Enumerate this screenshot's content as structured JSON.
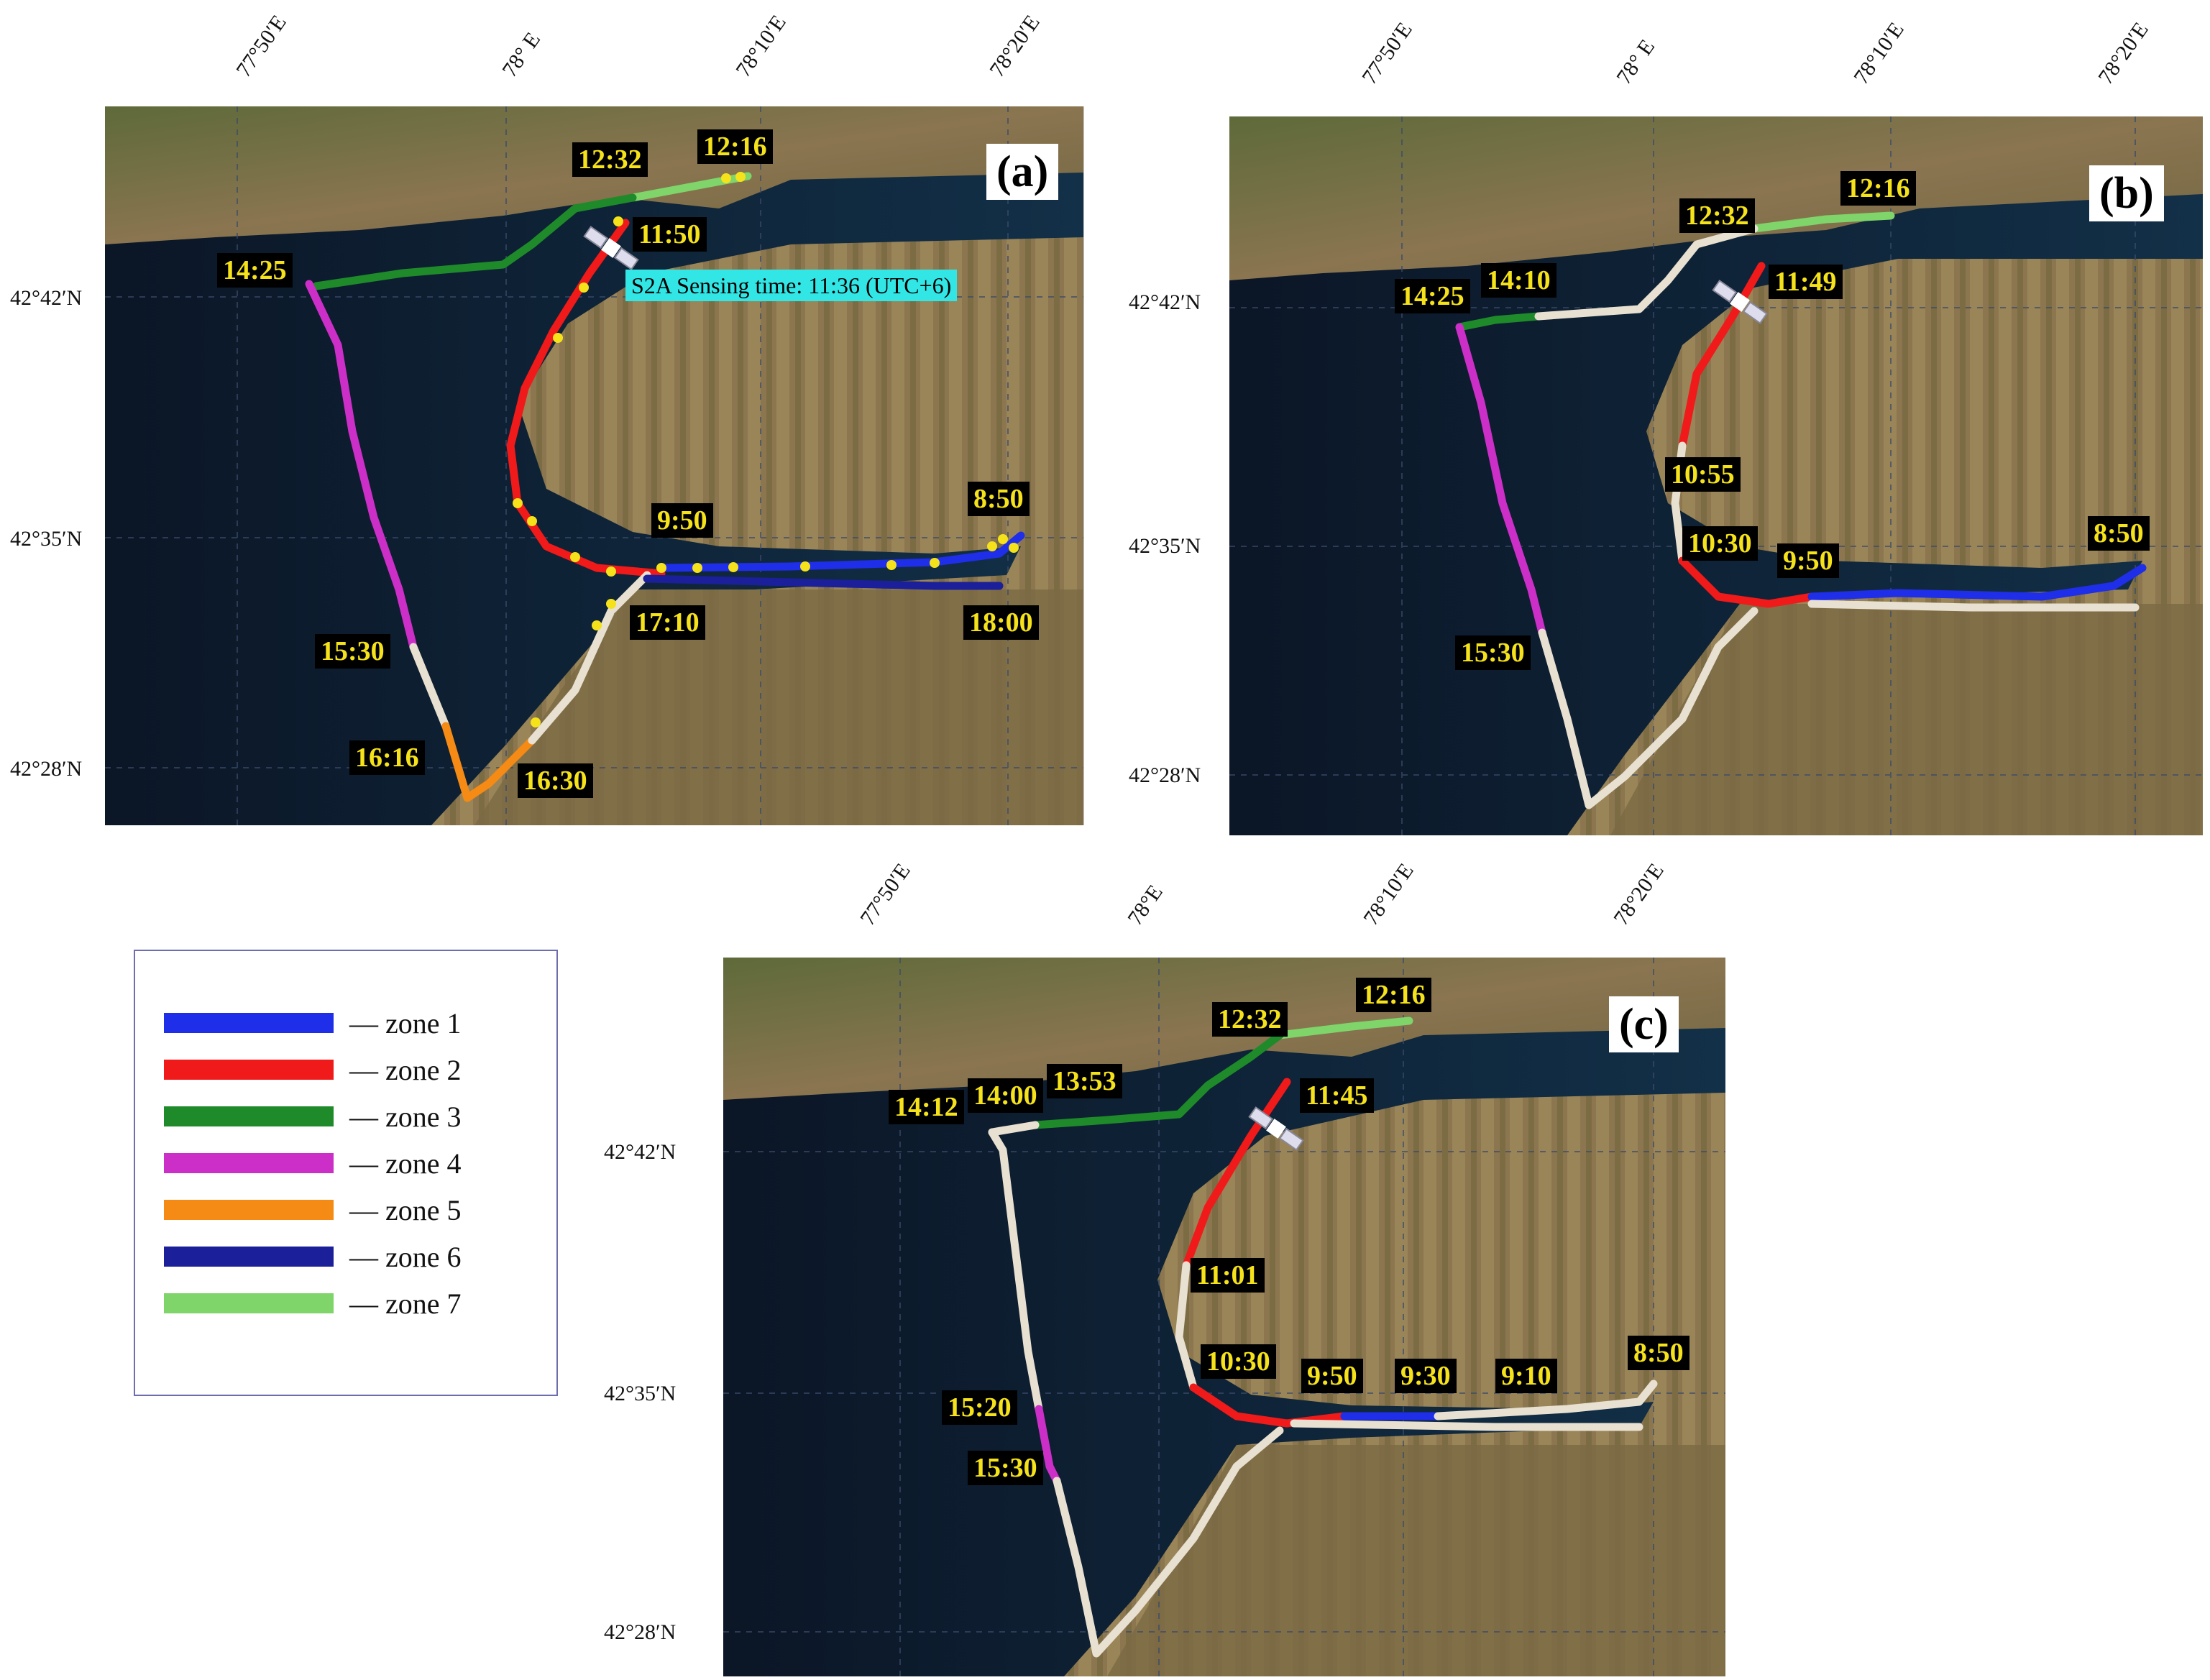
{
  "colors": {
    "zone1": "#1f2ee8",
    "zone2": "#f01a1a",
    "zone3": "#1e8a2a",
    "zone4": "#cc2fc8",
    "zone5": "#f58a14",
    "zone6": "#1b1f9a",
    "zone7": "#7fd46a",
    "unzoned": "#e8e0d0",
    "water": "#0e1b2c",
    "land": "#7a6a44",
    "sample_point": "#f5e21a"
  },
  "panels": {
    "a": {
      "letter": "(a)",
      "lon_labels": [
        "77°50′E",
        "78° E",
        "78°10′E",
        "78°20′E"
      ],
      "lat_labels": [
        "42°42′N",
        "42°35′N",
        "42°28′N"
      ],
      "sensing_label": "S2A Sensing time: 11:36 (UTC+6)",
      "times": [
        "12:32",
        "12:16",
        "11:50",
        "14:25",
        "9:50",
        "8:50",
        "17:10",
        "18:00",
        "15:30",
        "16:16",
        "16:30"
      ]
    },
    "b": {
      "letter": "(b)",
      "lon_labels": [
        "77°50′E",
        "78° E",
        "78°10′E",
        "78°20′E"
      ],
      "lat_labels": [
        "42°42′N",
        "42°35′N",
        "42°28′N"
      ],
      "times": [
        "12:16",
        "12:32",
        "14:10",
        "14:25",
        "11:49",
        "10:55",
        "10:30",
        "9:50",
        "8:50",
        "15:30"
      ]
    },
    "c": {
      "letter": "(c)",
      "lon_labels": [
        "77°50′E",
        "78°E",
        "78°10′E",
        "78°20′E"
      ],
      "lat_labels": [
        "42°42′N",
        "42°35′N",
        "42°28′N"
      ],
      "times": [
        "12:16",
        "12:32",
        "14:12",
        "14:00",
        "13:53",
        "11:45",
        "11:01",
        "10:30",
        "9:50",
        "9:30",
        "9:10",
        "8:50",
        "15:20",
        "15:30"
      ]
    }
  },
  "legend": {
    "items": [
      {
        "label": "— zone 1",
        "color_key": "zone1"
      },
      {
        "label": "— zone 2",
        "color_key": "zone2"
      },
      {
        "label": "— zone 3",
        "color_key": "zone3"
      },
      {
        "label": "— zone 4",
        "color_key": "zone4"
      },
      {
        "label": "— zone 5",
        "color_key": "zone5"
      },
      {
        "label": "— zone 6",
        "color_key": "zone6"
      },
      {
        "label": "— zone 7",
        "color_key": "zone7"
      }
    ]
  }
}
